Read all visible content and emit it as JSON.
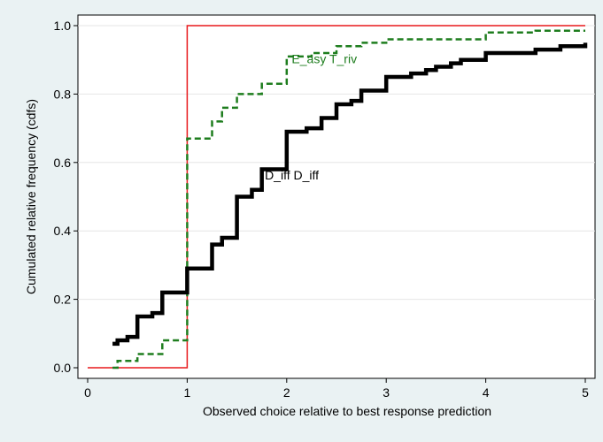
{
  "chart_data": {
    "type": "line",
    "xlabel": "Observed choice relative to best response prediction",
    "ylabel": "Cumulated relative frequency (cdfs)",
    "xlim": [
      0,
      5
    ],
    "ylim": [
      0,
      1
    ],
    "x_ticks": [
      "0",
      "1",
      "2",
      "3",
      "4",
      "5"
    ],
    "y_ticks": [
      "0.0",
      "0.2",
      "0.4",
      "0.6",
      "0.8",
      "1.0"
    ],
    "grid": true,
    "legend": "none",
    "series": [
      {
        "key": "best_response",
        "color": "#e8191c",
        "style": "solid-thin",
        "x": [
          0,
          1,
          1,
          5
        ],
        "y": [
          0,
          0,
          1,
          1
        ]
      },
      {
        "key": "easy_triv",
        "name": "E_asy T_riv",
        "color": "#1e7d1e",
        "style": "dashed",
        "label_at": [
          2.05,
          0.89
        ],
        "x": [
          0.25,
          0.3,
          0.5,
          0.75,
          1.0,
          1.0,
          1.25,
          1.35,
          1.5,
          1.75,
          2.0,
          2.25,
          2.5,
          2.75,
          3.0,
          4.0,
          4.5,
          5.0
        ],
        "y": [
          0,
          0.02,
          0.04,
          0.08,
          0.09,
          0.67,
          0.72,
          0.76,
          0.8,
          0.83,
          0.91,
          0.92,
          0.94,
          0.95,
          0.96,
          0.98,
          0.985,
          0.985
        ]
      },
      {
        "key": "diff_diff",
        "name": "D_iff D_iff",
        "color": "#000000",
        "style": "solid-thick",
        "label_at": [
          1.78,
          0.55
        ],
        "x": [
          0.25,
          0.3,
          0.4,
          0.5,
          0.65,
          0.75,
          1.0,
          1.25,
          1.35,
          1.5,
          1.65,
          1.75,
          2.0,
          2.2,
          2.35,
          2.5,
          2.65,
          2.75,
          3.0,
          3.25,
          3.4,
          3.5,
          3.65,
          3.75,
          3.85,
          4.0,
          4.5,
          4.75,
          5.0
        ],
        "y": [
          0.07,
          0.08,
          0.09,
          0.15,
          0.16,
          0.22,
          0.29,
          0.36,
          0.38,
          0.5,
          0.52,
          0.58,
          0.69,
          0.7,
          0.73,
          0.77,
          0.78,
          0.81,
          0.85,
          0.86,
          0.87,
          0.88,
          0.89,
          0.9,
          0.9,
          0.92,
          0.93,
          0.94,
          0.95
        ]
      }
    ]
  }
}
